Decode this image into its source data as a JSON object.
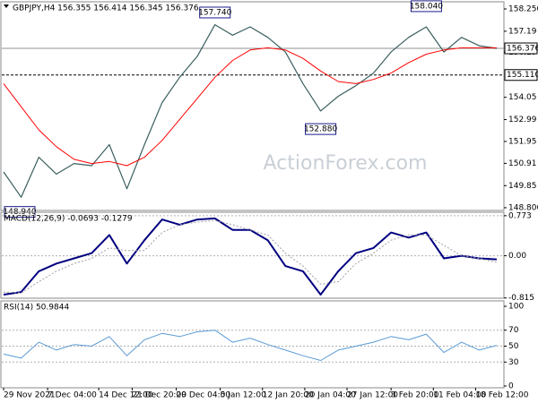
{
  "chart_data": [
    {
      "type": "line",
      "title": "GBPJPY,H4 156.355 156.414 156.345 156.376",
      "watermark": "ActionForex.com",
      "x": [
        0,
        1,
        2,
        3,
        4,
        5,
        6,
        7,
        8,
        9,
        10,
        11,
        12,
        13,
        14,
        15,
        16,
        17,
        18,
        19,
        20,
        21,
        22,
        23,
        24,
        25,
        26,
        27,
        28
      ],
      "xlim": [
        0,
        28
      ],
      "ylim": [
        148.67,
        158.59
      ],
      "yticks": [
        {
          "value": 158.25,
          "label": "158.250"
        },
        157.19,
        156.19,
        154.05,
        152.99,
        151.95,
        150.91,
        149.85,
        {
          "value": 148.8,
          "label": "148.800"
        }
      ],
      "series": [
        {
          "color": "#3b5f5f",
          "width": 1.2,
          "values": [
            150.5,
            149.3,
            151.2,
            150.4,
            150.9,
            150.8,
            151.8,
            149.7,
            151.8,
            153.8,
            155.0,
            156.0,
            157.5,
            157.0,
            157.4,
            156.9,
            156.2,
            154.7,
            153.4,
            154.1,
            154.6,
            155.2,
            156.2,
            156.9,
            157.4,
            156.2,
            156.9,
            156.5,
            156.376
          ]
        },
        {
          "color": "#ff0000",
          "width": 1,
          "values": [
            154.7,
            153.6,
            152.5,
            151.7,
            151.1,
            150.9,
            151.0,
            150.8,
            151.2,
            152.0,
            153.0,
            154.0,
            155.0,
            155.8,
            156.3,
            156.4,
            156.3,
            155.9,
            155.3,
            154.8,
            154.7,
            154.9,
            155.2,
            155.7,
            156.1,
            156.3,
            156.4,
            156.4,
            156.4
          ]
        }
      ],
      "annotations": [
        {
          "x": 12,
          "value": 157.74,
          "label": "157.740",
          "position": "above"
        },
        {
          "x": 24,
          "value": 158.04,
          "label": "158.040",
          "position": "above"
        },
        {
          "x": 18,
          "value": 152.88,
          "label": "152.880",
          "position": "below"
        },
        {
          "x": 0,
          "value": 148.94,
          "label": "148.940",
          "position": "below"
        }
      ],
      "price_lines": [
        {
          "value": 156.376,
          "label": "156.376",
          "style": "solid"
        },
        {
          "value": 155.11,
          "label": "155.110",
          "style": "dashed"
        }
      ]
    },
    {
      "type": "line",
      "title": "MACD(12,26,9) -0.0693 -0.1279",
      "x": [
        0,
        1,
        2,
        3,
        4,
        5,
        6,
        7,
        8,
        9,
        10,
        11,
        12,
        13,
        14,
        15,
        16,
        17,
        18,
        19,
        20,
        21,
        22,
        23,
        24,
        25,
        26,
        27,
        28
      ],
      "xlim": [
        0,
        28
      ],
      "ylim": [
        -0.82,
        0.84
      ],
      "yticks": [
        0.773,
        {
          "value": 0,
          "label": "0.00"
        },
        -0.815
      ],
      "grid": true,
      "series": [
        {
          "color": "#000080",
          "width": 2,
          "values": [
            -0.75,
            -0.7,
            -0.3,
            -0.15,
            -0.05,
            0.05,
            0.4,
            -0.15,
            0.3,
            0.7,
            0.6,
            0.7,
            0.72,
            0.5,
            0.5,
            0.3,
            -0.2,
            -0.3,
            -0.75,
            -0.3,
            0.05,
            0.15,
            0.45,
            0.35,
            0.45,
            -0.05,
            0.0,
            -0.05,
            -0.0693
          ]
        },
        {
          "color": "#a0a0a0",
          "width": 1,
          "dash": true,
          "values": [
            -0.7,
            -0.72,
            -0.5,
            -0.3,
            -0.15,
            -0.05,
            0.15,
            0.1,
            0.1,
            0.45,
            0.6,
            0.65,
            0.68,
            0.6,
            0.5,
            0.4,
            0.05,
            -0.2,
            -0.55,
            -0.5,
            -0.15,
            0.05,
            0.3,
            0.4,
            0.4,
            0.2,
            0.0,
            -0.05,
            -0.1279
          ]
        }
      ]
    },
    {
      "type": "line",
      "title": "RSI(14) 50.9844",
      "x": [
        0,
        1,
        2,
        3,
        4,
        5,
        6,
        7,
        8,
        9,
        10,
        11,
        12,
        13,
        14,
        15,
        16,
        17,
        18,
        19,
        20,
        21,
        22,
        23,
        24,
        25,
        26,
        27,
        28
      ],
      "xlim": [
        0,
        28
      ],
      "ylim": [
        0,
        100
      ],
      "yticks": [
        100,
        70,
        50,
        30,
        0
      ],
      "grid": true,
      "series": [
        {
          "color": "#5b9bd5",
          "width": 1,
          "values": [
            40,
            35,
            55,
            45,
            52,
            50,
            62,
            38,
            58,
            66,
            62,
            68,
            70,
            55,
            60,
            52,
            45,
            38,
            32,
            45,
            50,
            55,
            62,
            58,
            65,
            42,
            55,
            45,
            50.9844
          ]
        }
      ],
      "xticks": [
        {
          "value": 0,
          "label": "29 Nov 2021"
        },
        {
          "value": 2.5,
          "label": "7 Dec 04:00"
        },
        {
          "value": 5.4,
          "label": "14 Dec 12:00"
        },
        {
          "value": 7.3,
          "label": "21 Dec 20:00"
        },
        {
          "value": 9.8,
          "label": "29 Dec 04:00"
        },
        {
          "value": 12.3,
          "label": "5 Jan 12:00"
        },
        {
          "value": 14.7,
          "label": "12 Jan 20:00"
        },
        {
          "value": 17.1,
          "label": "20 Jan 04:00"
        },
        {
          "value": 19.5,
          "label": "27 Jan 12:00"
        },
        {
          "value": 22.0,
          "label": "3 Feb 20:00"
        },
        {
          "value": 24.4,
          "label": "11 Feb 04:00"
        },
        {
          "value": 26.8,
          "label": "18 Feb 12:00"
        }
      ]
    }
  ]
}
